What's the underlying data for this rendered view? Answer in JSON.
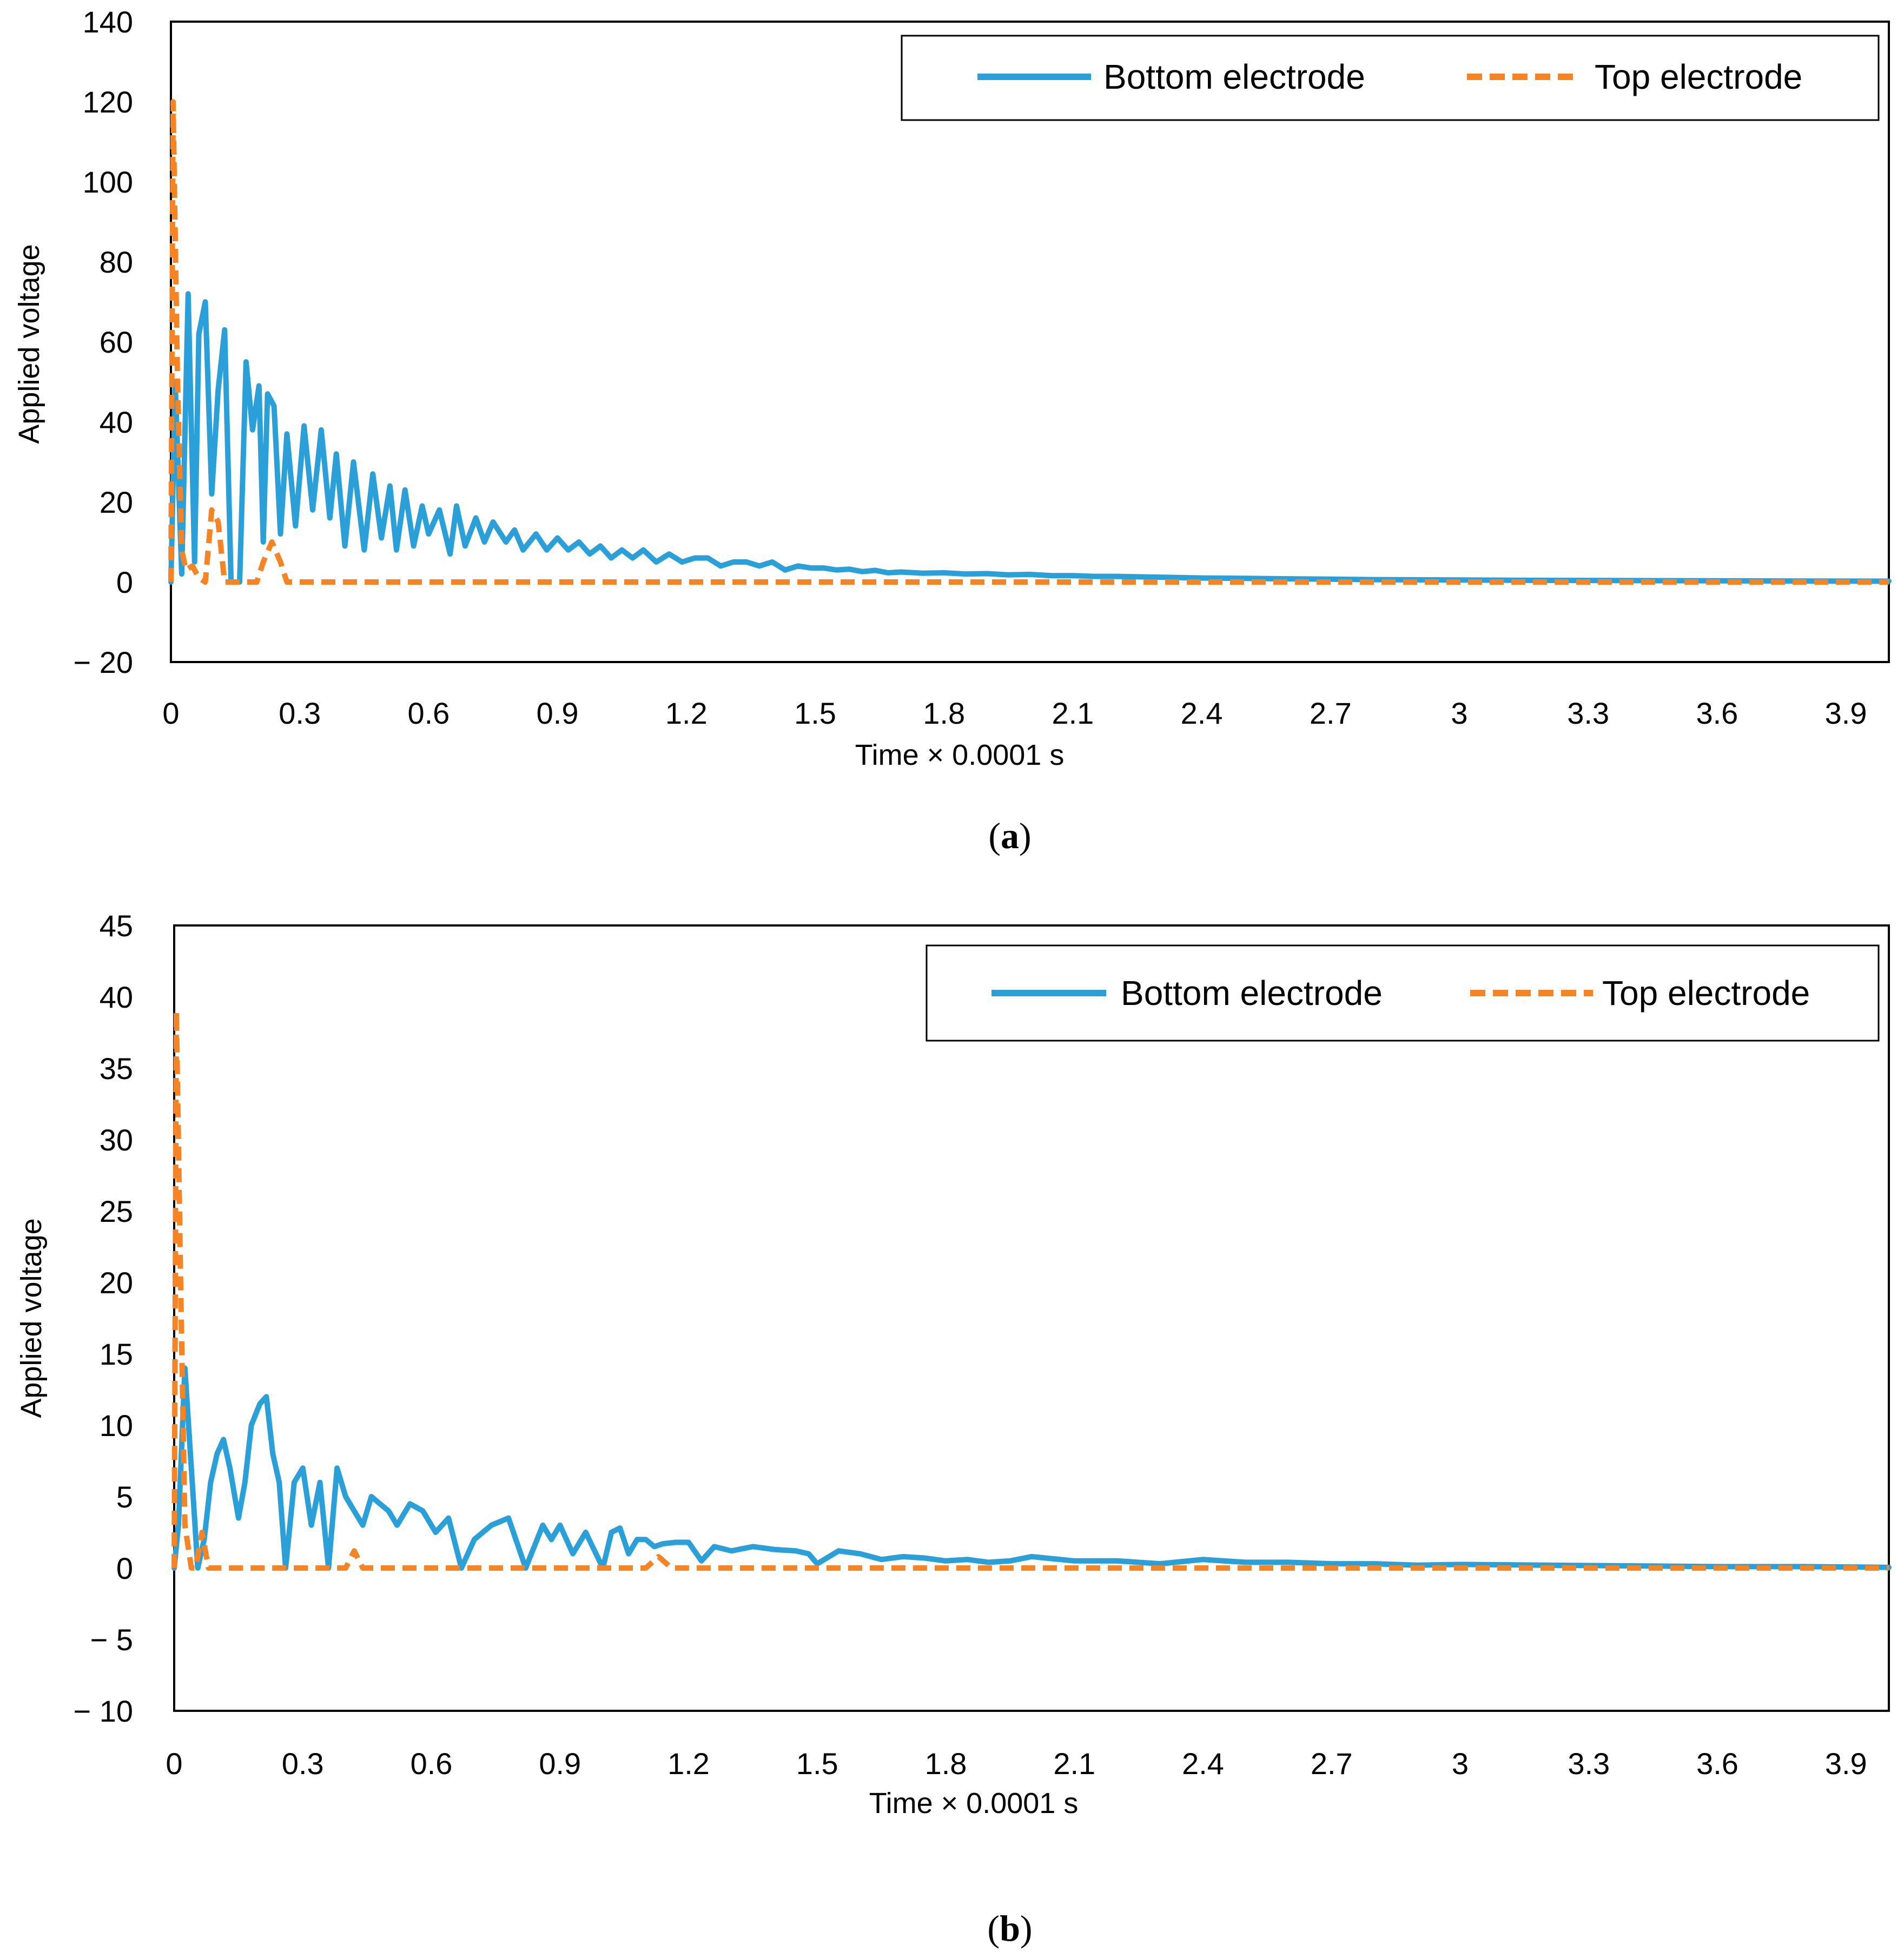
{
  "chart_data": [
    {
      "type": "line",
      "caption_open": "(",
      "caption_letter": "a",
      "caption_close": ")",
      "title": "",
      "xlabel": "Time × 0.0001 s",
      "ylabel": "Applied voltage",
      "xlim": [
        0,
        4.0
      ],
      "ylim": [
        -20,
        140
      ],
      "x_ticks": [
        0,
        0.3,
        0.6,
        0.9,
        1.2,
        1.5,
        1.8,
        2.1,
        2.4,
        2.7,
        3.0,
        3.3,
        3.6,
        3.9
      ],
      "x_tick_labels": [
        "0",
        "0.3",
        "0.6",
        "0.9",
        "1.2",
        "1.5",
        "1.8",
        "2.1",
        "2.4",
        "2.7",
        "3",
        "3.3",
        "3.6",
        "3.9"
      ],
      "y_ticks": [
        -20,
        0,
        20,
        40,
        60,
        80,
        100,
        120,
        140
      ],
      "y_tick_labels": [
        "− 20",
        "0",
        "20",
        "40",
        "60",
        "80",
        "100",
        "120",
        "140"
      ],
      "grid": false,
      "legend_position": "top-right",
      "series": [
        {
          "name": "Bottom electrode",
          "color": "#2ba0d8",
          "style": "solid",
          "x": [
            0,
            0.01,
            0.025,
            0.04,
            0.055,
            0.065,
            0.08,
            0.095,
            0.11,
            0.125,
            0.14,
            0.16,
            0.175,
            0.19,
            0.205,
            0.215,
            0.225,
            0.24,
            0.255,
            0.27,
            0.29,
            0.31,
            0.33,
            0.35,
            0.37,
            0.385,
            0.405,
            0.425,
            0.45,
            0.47,
            0.49,
            0.51,
            0.525,
            0.545,
            0.565,
            0.585,
            0.6,
            0.625,
            0.65,
            0.665,
            0.685,
            0.71,
            0.73,
            0.75,
            0.78,
            0.8,
            0.82,
            0.85,
            0.875,
            0.9,
            0.925,
            0.95,
            0.975,
            1.0,
            1.025,
            1.05,
            1.075,
            1.1,
            1.13,
            1.16,
            1.19,
            1.22,
            1.25,
            1.28,
            1.31,
            1.34,
            1.37,
            1.4,
            1.43,
            1.46,
            1.49,
            1.52,
            1.55,
            1.58,
            1.61,
            1.64,
            1.67,
            1.7,
            1.75,
            1.8,
            1.85,
            1.9,
            1.95,
            2.0,
            2.05,
            2.1,
            2.15,
            2.2,
            2.3,
            2.4,
            2.5,
            2.6,
            2.7,
            2.8,
            2.9,
            3.0,
            3.2,
            3.4,
            3.6,
            3.8,
            4.0
          ],
          "y": [
            0,
            50,
            2,
            72,
            5,
            62,
            70,
            22,
            48,
            63,
            0,
            0,
            55,
            38,
            49,
            10,
            47,
            44,
            12,
            37,
            14,
            39,
            18,
            38,
            16,
            32,
            9,
            30,
            8,
            27,
            11,
            24,
            8,
            23,
            9,
            19,
            12,
            18,
            7,
            19,
            9,
            16,
            10,
            15,
            10,
            13,
            8,
            12,
            8,
            11,
            8,
            10,
            7,
            9,
            6,
            8,
            6,
            8,
            5,
            7,
            5,
            6,
            6,
            4,
            5,
            5,
            4,
            5,
            3,
            4,
            3.5,
            3.5,
            3,
            3.2,
            2.6,
            2.9,
            2.3,
            2.5,
            2.2,
            2.3,
            2.0,
            2.1,
            1.8,
            1.9,
            1.6,
            1.6,
            1.4,
            1.4,
            1.2,
            1.0,
            0.9,
            0.8,
            0.7,
            0.6,
            0.55,
            0.5,
            0.4,
            0.35,
            0.3,
            0.25,
            0.2
          ]
        },
        {
          "name": "Top electrode",
          "color": "#f58426",
          "style": "dashed",
          "x": [
            0,
            0.005,
            0.015,
            0.025,
            0.035,
            0.05,
            0.065,
            0.08,
            0.095,
            0.11,
            0.125,
            0.14,
            0.2,
            0.215,
            0.235,
            0.255,
            0.27,
            0.3,
            4.0
          ],
          "y": [
            0,
            120,
            52,
            8,
            3,
            4,
            1,
            0,
            18,
            15,
            0,
            0,
            0,
            5,
            10,
            5,
            0,
            0,
            0
          ]
        }
      ]
    },
    {
      "type": "line",
      "caption_open": "(",
      "caption_letter": "b",
      "caption_close": ")",
      "title": "",
      "xlabel": "Time × 0.0001 s",
      "ylabel": "Applied voltage",
      "xlim": [
        0,
        4.0
      ],
      "ylim": [
        -10,
        45
      ],
      "x_ticks": [
        0,
        0.3,
        0.6,
        0.9,
        1.2,
        1.5,
        1.8,
        2.1,
        2.4,
        2.7,
        3.0,
        3.3,
        3.6,
        3.9
      ],
      "x_tick_labels": [
        "0",
        "0.3",
        "0.6",
        "0.9",
        "1.2",
        "1.5",
        "1.8",
        "2.1",
        "2.4",
        "2.7",
        "3",
        "3.3",
        "3.6",
        "3.9"
      ],
      "y_ticks": [
        -10,
        -5,
        0,
        5,
        10,
        15,
        20,
        25,
        30,
        35,
        40,
        45
      ],
      "y_tick_labels": [
        "− 10",
        "− 5",
        "0",
        "5",
        "10",
        "15",
        "20",
        "25",
        "30",
        "35",
        "40",
        "45"
      ],
      "grid": false,
      "legend_position": "top-right",
      "series": [
        {
          "name": "Bottom electrode",
          "color": "#2ba0d8",
          "style": "solid",
          "x": [
            0,
            0.01,
            0.025,
            0.04,
            0.055,
            0.07,
            0.085,
            0.1,
            0.115,
            0.13,
            0.15,
            0.165,
            0.18,
            0.2,
            0.215,
            0.23,
            0.245,
            0.26,
            0.28,
            0.3,
            0.32,
            0.34,
            0.36,
            0.38,
            0.4,
            0.42,
            0.44,
            0.46,
            0.48,
            0.5,
            0.52,
            0.55,
            0.58,
            0.61,
            0.64,
            0.67,
            0.7,
            0.74,
            0.78,
            0.82,
            0.86,
            0.88,
            0.9,
            0.93,
            0.96,
            1.0,
            1.02,
            1.04,
            1.06,
            1.08,
            1.1,
            1.12,
            1.14,
            1.17,
            1.2,
            1.23,
            1.26,
            1.3,
            1.35,
            1.4,
            1.45,
            1.48,
            1.5,
            1.55,
            1.6,
            1.65,
            1.7,
            1.75,
            1.8,
            1.85,
            1.9,
            1.95,
            2.0,
            2.1,
            2.2,
            2.3,
            2.4,
            2.5,
            2.6,
            2.7,
            2.8,
            2.9,
            3.0,
            3.2,
            3.4,
            3.6,
            3.8,
            4.0
          ],
          "y": [
            0,
            3,
            14,
            7,
            0,
            2,
            6,
            8,
            9,
            7,
            3.5,
            6,
            10,
            11.5,
            12,
            8,
            6,
            0,
            6,
            7,
            3,
            6,
            0,
            7,
            5,
            4,
            3,
            5,
            4.5,
            4,
            3,
            4.5,
            4,
            2.5,
            3.5,
            0,
            2,
            3,
            3.5,
            0,
            3,
            2,
            3,
            1,
            2.5,
            0,
            2.5,
            2.8,
            1,
            2,
            2,
            1.5,
            1.7,
            1.8,
            1.8,
            0.5,
            1.5,
            1.2,
            1.5,
            1.3,
            1.2,
            1.0,
            0.3,
            1.2,
            1.0,
            0.6,
            0.8,
            0.7,
            0.5,
            0.6,
            0.4,
            0.5,
            0.8,
            0.5,
            0.5,
            0.3,
            0.6,
            0.4,
            0.4,
            0.3,
            0.3,
            0.2,
            0.25,
            0.2,
            0.15,
            0.1,
            0.1,
            0.05
          ]
        },
        {
          "name": "Top electrode",
          "color": "#f58426",
          "style": "dashed",
          "x": [
            0,
            0.005,
            0.015,
            0.025,
            0.04,
            0.05,
            0.065,
            0.08,
            0.1,
            0.4,
            0.42,
            0.44,
            1.1,
            1.13,
            1.16,
            4.0
          ],
          "y": [
            0,
            39,
            20,
            3,
            0,
            0,
            2.5,
            0,
            0,
            0,
            1.2,
            0,
            0,
            0.8,
            0,
            0
          ]
        }
      ]
    }
  ]
}
